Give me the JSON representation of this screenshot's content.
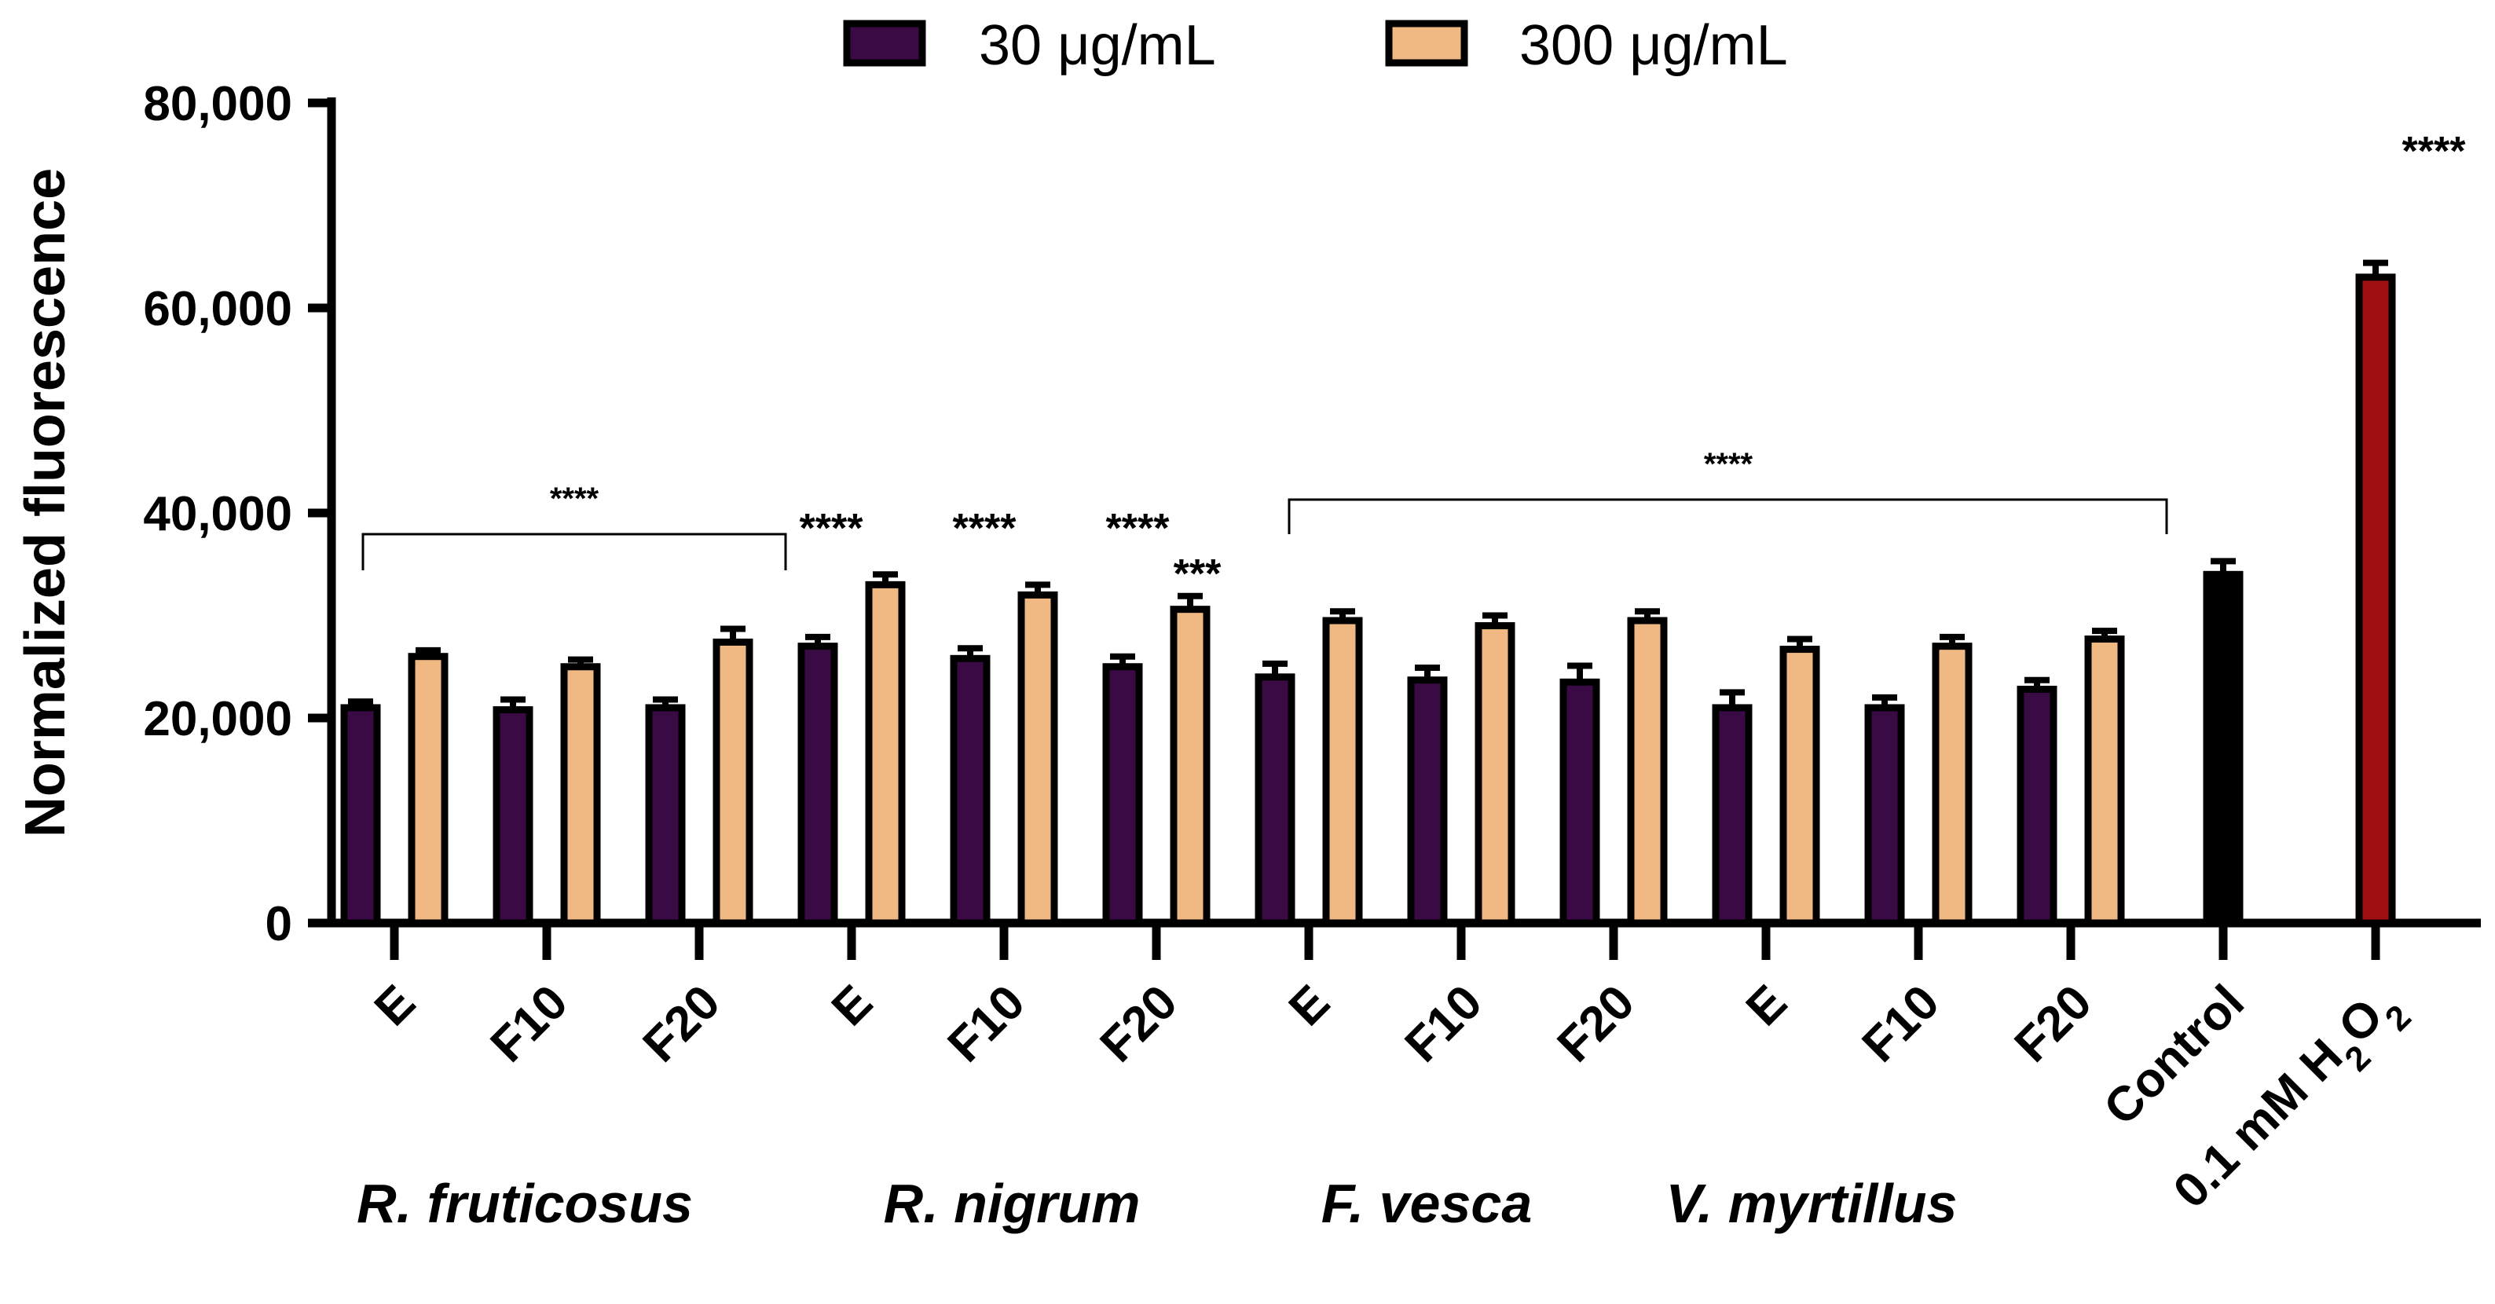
{
  "chart_data": {
    "type": "bar",
    "ylabel": "Normalized fluorescence",
    "xlabel": "",
    "ylim": [
      0,
      80000
    ],
    "yticks": [
      0,
      20000,
      40000,
      60000,
      80000
    ],
    "ytick_labels": [
      "0",
      "20,000",
      "40,000",
      "60,000",
      "80,000"
    ],
    "categories": [
      "E",
      "F10",
      "F20",
      "E",
      "F10",
      "F20",
      "E",
      "F10",
      "F20",
      "E",
      "F10",
      "F20",
      "Control",
      "0.1 mM H2O2"
    ],
    "groups": [
      "R. fruticosus",
      "R. nigrum",
      "F. vesca",
      "V. myrtillus"
    ],
    "series": [
      {
        "name": "30 μg/mL",
        "color": "#3a0a45",
        "values": [
          21000,
          20800,
          21000,
          27000,
          25800,
          25000,
          24000,
          23700,
          23500,
          21000,
          21000,
          22800,
          null,
          null
        ],
        "errors": [
          600,
          1000,
          800,
          900,
          1000,
          1000,
          1300,
          1200,
          1600,
          1500,
          1000,
          900,
          null,
          null
        ]
      },
      {
        "name": "300 μg/mL",
        "color": "#f0b882",
        "values": [
          26000,
          25000,
          27400,
          33000,
          32000,
          30600,
          29500,
          29000,
          29500,
          26700,
          27000,
          27700,
          null,
          null
        ],
        "errors": [
          600,
          700,
          1300,
          1000,
          1000,
          1300,
          900,
          1000,
          900,
          1000,
          900,
          800,
          null,
          null
        ]
      },
      {
        "name": "Control",
        "color": "#000000",
        "values": [
          null,
          null,
          null,
          null,
          null,
          null,
          null,
          null,
          null,
          null,
          null,
          null,
          34000,
          null
        ],
        "errors": [
          null,
          null,
          null,
          null,
          null,
          null,
          null,
          null,
          null,
          null,
          null,
          null,
          1300,
          null
        ]
      },
      {
        "name": "0.1 mM H2O2",
        "color": "#a01010",
        "values": [
          null,
          null,
          null,
          null,
          null,
          null,
          null,
          null,
          null,
          null,
          null,
          null,
          null,
          63000
        ],
        "errors": [
          null,
          null,
          null,
          null,
          null,
          null,
          null,
          null,
          null,
          null,
          null,
          null,
          null,
          1400
        ]
      }
    ],
    "annotations": [
      {
        "text": "****",
        "note": "bracket over R. fruticosus E–F20"
      },
      {
        "text": "****",
        "note": "R. nigrum E"
      },
      {
        "text": "****",
        "note": "R. nigrum F10"
      },
      {
        "text": "****",
        "note": "R. nigrum F20"
      },
      {
        "text": "***",
        "note": "R. nigrum F20 300 μg/mL"
      },
      {
        "text": "****",
        "note": "bracket over F. vesca and V. myrtillus"
      },
      {
        "text": "****",
        "note": "0.1 mM H2O2"
      }
    ],
    "legend": {
      "placement": "top-center",
      "entries": [
        "30 μg/mL",
        "300 μg/mL"
      ]
    }
  }
}
